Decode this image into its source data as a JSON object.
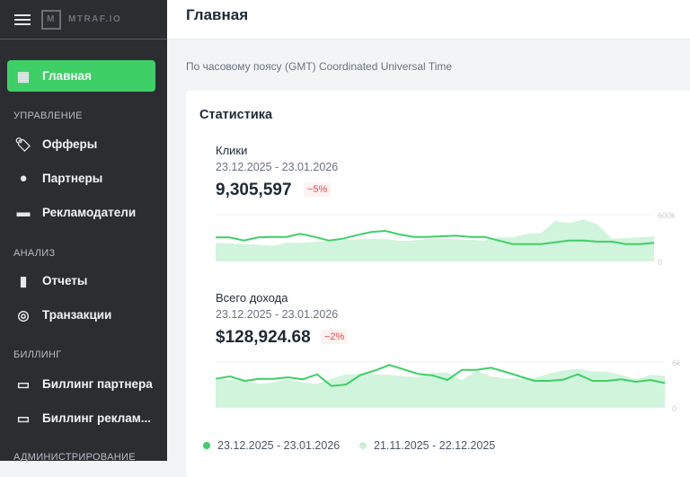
{
  "app": {
    "logo": "MTRAF.IO"
  },
  "sidebar": {
    "active": {
      "label": "Главная",
      "icon": "dashboard-icon"
    },
    "sections": [
      {
        "title": "УПРАВЛЕНИЕ",
        "items": [
          {
            "label": "Офферы",
            "icon": "tag-icon"
          },
          {
            "label": "Партнеры",
            "icon": "user-circle-icon"
          },
          {
            "label": "Рекламодатели",
            "icon": "briefcase-icon"
          }
        ]
      },
      {
        "title": "АНАЛИЗ",
        "items": [
          {
            "label": "Отчеты",
            "icon": "bar-chart-icon"
          },
          {
            "label": "Транзакции",
            "icon": "cursor-click-icon"
          }
        ]
      },
      {
        "title": "БИЛЛИНГ",
        "items": [
          {
            "label": "Биллинг партнера",
            "icon": "credit-card-icon"
          },
          {
            "label": "Биллинг реклам...",
            "icon": "credit-card-icon"
          }
        ]
      },
      {
        "title": "АДМИНИСТРИРОВАНИЕ",
        "items": []
      }
    ]
  },
  "header": {
    "title": "Главная"
  },
  "timezone": "По часовому поясу (GMT) Coordinated Universal Time",
  "card": {
    "title": "Статистика"
  },
  "legend": [
    {
      "label": "23.12.2025 - 23.01.2026",
      "color": "#3ecf66"
    },
    {
      "label": "21.11.2025 - 22.12.2025",
      "color": "#c9f0d3"
    }
  ],
  "chart_data": [
    {
      "type": "line",
      "title": "Клики",
      "date_range": "23.12.2025 - 23.01.2026",
      "total": "9,305,597",
      "change": "−5%",
      "ylim": [
        0,
        600000
      ],
      "y_ticks": [
        "600k",
        "0"
      ],
      "series": [
        {
          "name": "23.12.2025 - 23.01.2026",
          "style": "line",
          "color": "#3ecf66",
          "values": [
            308000,
            308000,
            269000,
            308000,
            315000,
            315000,
            354000,
            315000,
            269000,
            292000,
            338000,
            377000,
            392000,
            346000,
            315000,
            315000,
            323000,
            331000,
            315000,
            315000,
            269000,
            223000,
            223000,
            223000,
            246000,
            269000,
            269000,
            254000,
            254000,
            223000,
            223000,
            238000
          ]
        },
        {
          "name": "21.11.2025 - 22.12.2025",
          "style": "area",
          "color": "#d1f4dc",
          "values": [
            238000,
            231000,
            223000,
            215000,
            200000,
            238000,
            238000,
            250000,
            262000,
            277000,
            285000,
            292000,
            292000,
            262000,
            269000,
            292000,
            292000,
            285000,
            277000,
            269000,
            308000,
            308000,
            354000,
            362000,
            519000,
            492000,
            538000,
            477000,
            292000,
            300000,
            308000,
            323000
          ]
        }
      ]
    },
    {
      "type": "line",
      "title": "Всего дохода",
      "date_range": "23.12.2025 - 23.01.2026",
      "total": "$128,924.68",
      "change": "−2%",
      "ylim": [
        0,
        6000
      ],
      "y_ticks": [
        "6k",
        "0"
      ],
      "series": [
        {
          "name": "23.12.2025 - 23.01.2026",
          "style": "line",
          "color": "#3ecf66",
          "values": [
            3800,
            4120,
            3530,
            3800,
            3800,
            4000,
            3730,
            4390,
            2860,
            3060,
            4310,
            4900,
            5610,
            5020,
            4430,
            4240,
            3650,
            4980,
            4980,
            5250,
            4710,
            4120,
            3530,
            3530,
            3690,
            4390,
            3530,
            3530,
            3730,
            3410,
            3650,
            3250
          ]
        },
        {
          "name": "21.11.2025 - 22.12.2025",
          "style": "area",
          "color": "#d1f4dc",
          "values": [
            3610,
            3730,
            3530,
            3140,
            3330,
            3730,
            3330,
            3140,
            3840,
            4390,
            4430,
            4390,
            4310,
            4120,
            4040,
            4590,
            4630,
            3610,
            4900,
            4120,
            3840,
            3840,
            3920,
            4470,
            4900,
            5100,
            4780,
            4710,
            4310,
            3730,
            4310,
            4200
          ]
        }
      ]
    }
  ]
}
